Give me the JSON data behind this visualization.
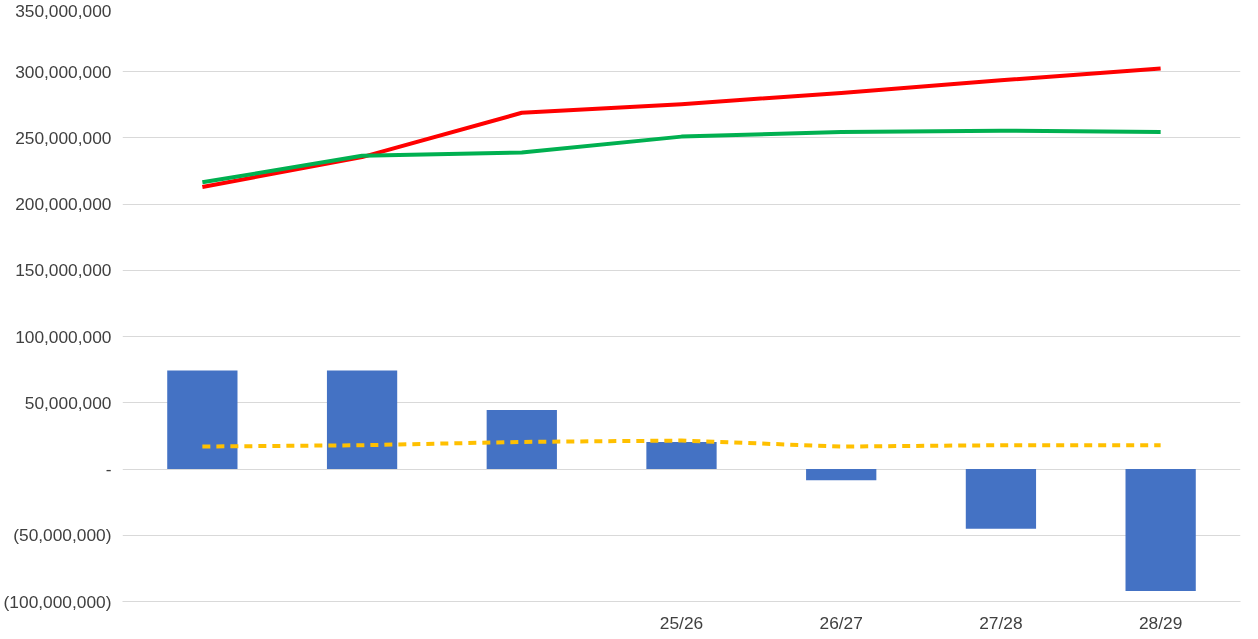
{
  "chart_data": {
    "type": "bar",
    "categories": [
      null,
      null,
      null,
      "25/26",
      "26/27",
      "27/28",
      "28/29"
    ],
    "series": [
      {
        "color": "#4472c4",
        "values": [
          74500000,
          74500000,
          44500000,
          20500000,
          -8500000,
          -45000000,
          -92000000
        ]
      },
      {
        "type": "line",
        "color": "#ff0000",
        "line_style": "solid",
        "values": [
          213000000,
          235500000,
          269000000,
          275500000,
          284000000,
          293500000,
          302500000
        ]
      },
      {
        "type": "line",
        "color": "#00b050",
        "line_style": "solid",
        "values": [
          216500000,
          236500000,
          239000000,
          251000000,
          254500000,
          255500000,
          254500000
        ]
      },
      {
        "type": "line",
        "color": "#ffc000",
        "line_style": "dashed",
        "values": [
          17000000,
          18000000,
          20500000,
          21500000,
          17000000,
          18000000,
          18000000
        ]
      }
    ],
    "ylim": [
      -100000000,
      350000000
    ],
    "yticks": [
      {
        "value": -100000000,
        "label": "(100,000,000)"
      },
      {
        "value": -50000000,
        "label": "(50,000,000)"
      },
      {
        "value": 0,
        "label": "-"
      },
      {
        "value": 50000000,
        "label": "50,000,000"
      },
      {
        "value": 100000000,
        "label": "100,000,000"
      },
      {
        "value": 150000000,
        "label": "150,000,000"
      },
      {
        "value": 200000000,
        "label": "200,000,000"
      },
      {
        "value": 250000000,
        "label": "250,000,000"
      },
      {
        "value": 300000000,
        "label": "300,000,000"
      },
      {
        "value": 350000000,
        "label": "350,000,000"
      }
    ],
    "grid": "y"
  }
}
